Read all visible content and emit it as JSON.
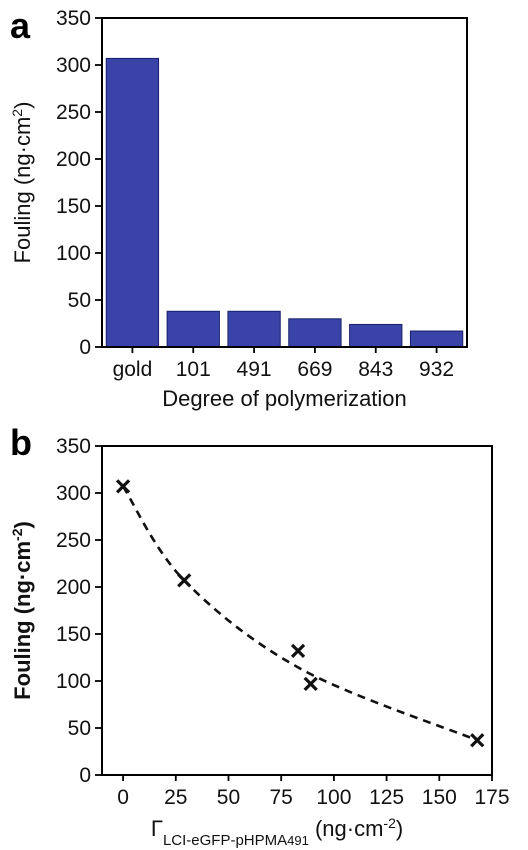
{
  "figure": {
    "panel_a_letter": "a",
    "panel_b_letter": "b"
  },
  "chart_data": [
    {
      "type": "bar",
      "categories": [
        "gold",
        "101",
        "491",
        "669",
        "843",
        "932"
      ],
      "values": [
        307,
        38,
        38,
        30,
        24,
        17
      ],
      "xlabel": "Degree of polymerization",
      "ylabel_main": "Fouling (ng·cm",
      "ylabel_sup": "2",
      "ylabel_close": ")",
      "ylim": [
        0,
        350
      ],
      "yticks": [
        0,
        50,
        100,
        150,
        200,
        250,
        300,
        350
      ],
      "bar_color": "#3a44a8",
      "grid": false
    },
    {
      "type": "scatter",
      "x": [
        0,
        29,
        83,
        89,
        168
      ],
      "y": [
        307,
        207,
        132,
        97,
        37
      ],
      "marker": "x",
      "fit_line": "dashed",
      "xlabel_main": "Γ",
      "xlabel_sub": "LCI-eGFP-pHPMA",
      "xlabel_subsub": "491",
      "xlabel_units": " (ng·cm",
      "xlabel_sup": "-2",
      "xlabel_close": ")",
      "ylabel_main": "Fouling (ng·cm",
      "ylabel_sup": "-2",
      "ylabel_close": ")",
      "xlim": [
        -10,
        175
      ],
      "ylim": [
        0,
        350
      ],
      "xticks": [
        0,
        25,
        50,
        75,
        100,
        125,
        150,
        175
      ],
      "yticks": [
        0,
        50,
        100,
        150,
        200,
        250,
        300,
        350
      ],
      "grid": false
    }
  ]
}
